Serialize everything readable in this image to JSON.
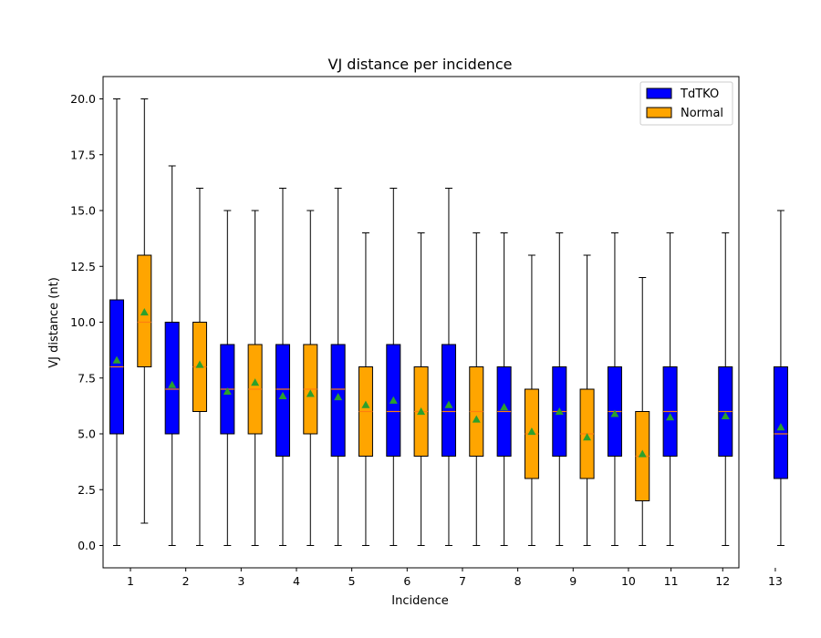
{
  "chart_data": {
    "type": "box",
    "title": "VJ distance per incidence",
    "xlabel": "Incidence",
    "ylabel": "VJ distance (nt)",
    "ylim": [
      -1.0,
      21.0
    ],
    "yticks": [
      "0.0",
      "2.5",
      "5.0",
      "7.5",
      "10.0",
      "12.5",
      "15.0",
      "17.5",
      "20.0"
    ],
    "xtick_labels": [
      "1",
      "2",
      "3",
      "4",
      "5",
      "6",
      "7",
      "8",
      "9",
      "10",
      "11",
      "12",
      "13"
    ],
    "legend": {
      "position": "top-right"
    },
    "series": [
      {
        "name": "TdTKO",
        "color": "#0000ff",
        "boxes": [
          {
            "incidence": "1",
            "whisker_low": 0,
            "q1": 5,
            "median": 8,
            "q3": 11,
            "whisker_high": 20,
            "mean": 8.3
          },
          {
            "incidence": "2",
            "whisker_low": 0,
            "q1": 5,
            "median": 7,
            "q3": 10,
            "whisker_high": 17,
            "mean": 7.2
          },
          {
            "incidence": "3",
            "whisker_low": 0,
            "q1": 5,
            "median": 7,
            "q3": 9,
            "whisker_high": 15,
            "mean": 6.9
          },
          {
            "incidence": "4",
            "whisker_low": 0,
            "q1": 4,
            "median": 7,
            "q3": 9,
            "whisker_high": 16,
            "mean": 6.7
          },
          {
            "incidence": "5",
            "whisker_low": 0,
            "q1": 4,
            "median": 7,
            "q3": 9,
            "whisker_high": 16,
            "mean": 6.65
          },
          {
            "incidence": "6",
            "whisker_low": 0,
            "q1": 4,
            "median": 6,
            "q3": 9,
            "whisker_high": 16,
            "mean": 6.5
          },
          {
            "incidence": "7",
            "whisker_low": 0,
            "q1": 4,
            "median": 6,
            "q3": 9,
            "whisker_high": 16,
            "mean": 6.3
          },
          {
            "incidence": "8",
            "whisker_low": 0,
            "q1": 4,
            "median": 6,
            "q3": 8,
            "whisker_high": 14,
            "mean": 6.2
          },
          {
            "incidence": "9",
            "whisker_low": 0,
            "q1": 4,
            "median": 6,
            "q3": 8,
            "whisker_high": 14,
            "mean": 6.0
          },
          {
            "incidence": "10",
            "whisker_low": 0,
            "q1": 4,
            "median": 6,
            "q3": 8,
            "whisker_high": 14,
            "mean": 5.9
          },
          {
            "incidence": "11",
            "whisker_low": 0,
            "q1": 4,
            "median": 6,
            "q3": 8,
            "whisker_high": 14,
            "mean": 5.75
          },
          {
            "incidence": "12",
            "whisker_low": 0,
            "q1": 4,
            "median": 6,
            "q3": 8,
            "whisker_high": 14,
            "mean": 5.8
          },
          {
            "incidence": "13",
            "whisker_low": 0,
            "q1": 3,
            "median": 5,
            "q3": 8,
            "whisker_high": 15,
            "mean": 5.3
          }
        ]
      },
      {
        "name": "Normal",
        "color": "#ffa500",
        "boxes": [
          {
            "incidence": "1",
            "whisker_low": 1,
            "q1": 8,
            "median": 10,
            "q3": 13,
            "whisker_high": 20,
            "mean": 10.45
          },
          {
            "incidence": "2",
            "whisker_low": 0,
            "q1": 6,
            "median": 8,
            "q3": 10,
            "whisker_high": 16,
            "mean": 8.1
          },
          {
            "incidence": "3",
            "whisker_low": 0,
            "q1": 5,
            "median": 7,
            "q3": 9,
            "whisker_high": 15,
            "mean": 7.3
          },
          {
            "incidence": "4",
            "whisker_low": 0,
            "q1": 5,
            "median": 7,
            "q3": 9,
            "whisker_high": 15,
            "mean": 6.8
          },
          {
            "incidence": "5",
            "whisker_low": 0,
            "q1": 4,
            "median": 6,
            "q3": 8,
            "whisker_high": 14,
            "mean": 6.3
          },
          {
            "incidence": "6",
            "whisker_low": 0,
            "q1": 4,
            "median": 6,
            "q3": 8,
            "whisker_high": 14,
            "mean": 6.0
          },
          {
            "incidence": "7",
            "whisker_low": 0,
            "q1": 4,
            "median": 6,
            "q3": 8,
            "whisker_high": 14,
            "mean": 5.65
          },
          {
            "incidence": "8",
            "whisker_low": 0,
            "q1": 3,
            "median": 5,
            "q3": 7,
            "whisker_high": 13,
            "mean": 5.1
          },
          {
            "incidence": "9",
            "whisker_low": 0,
            "q1": 3,
            "median": 5,
            "q3": 7,
            "whisker_high": 13,
            "mean": 4.85
          },
          {
            "incidence": "10",
            "whisker_low": 0,
            "q1": 2,
            "median": 4,
            "q3": 6,
            "whisker_high": 12,
            "mean": 4.1
          }
        ]
      }
    ],
    "mean_marker_color": "#2ca02c",
    "median_line_color": "#ff7f0e"
  }
}
